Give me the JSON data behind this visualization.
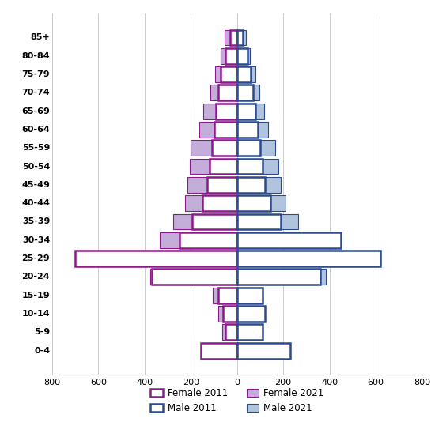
{
  "age_groups": [
    "0-4",
    "5-9",
    "10-14",
    "15-19",
    "20-24",
    "25-29",
    "30-34",
    "35-39",
    "40-44",
    "45-49",
    "50-54",
    "55-59",
    "60-64",
    "65-69",
    "70-74",
    "75-79",
    "80-84",
    "85+"
  ],
  "female_2011": [
    155,
    50,
    60,
    80,
    370,
    700,
    250,
    195,
    150,
    130,
    120,
    110,
    100,
    90,
    80,
    70,
    50,
    30
  ],
  "male_2011": [
    230,
    110,
    120,
    110,
    360,
    620,
    450,
    190,
    145,
    120,
    110,
    100,
    90,
    80,
    70,
    60,
    45,
    25
  ],
  "female_2021": [
    130,
    65,
    80,
    105,
    375,
    680,
    335,
    275,
    225,
    215,
    205,
    200,
    165,
    145,
    115,
    95,
    70,
    55
  ],
  "male_2021": [
    200,
    80,
    90,
    95,
    385,
    615,
    415,
    265,
    210,
    190,
    178,
    165,
    135,
    118,
    95,
    78,
    55,
    40
  ],
  "female_2011_edge": "#8B1A8B",
  "female_2021_face": "#C5ADDA",
  "male_2011_edge": "#2C4A8C",
  "male_2021_face": "#B0C4DE",
  "xlim": 800,
  "bar_height": 0.85
}
